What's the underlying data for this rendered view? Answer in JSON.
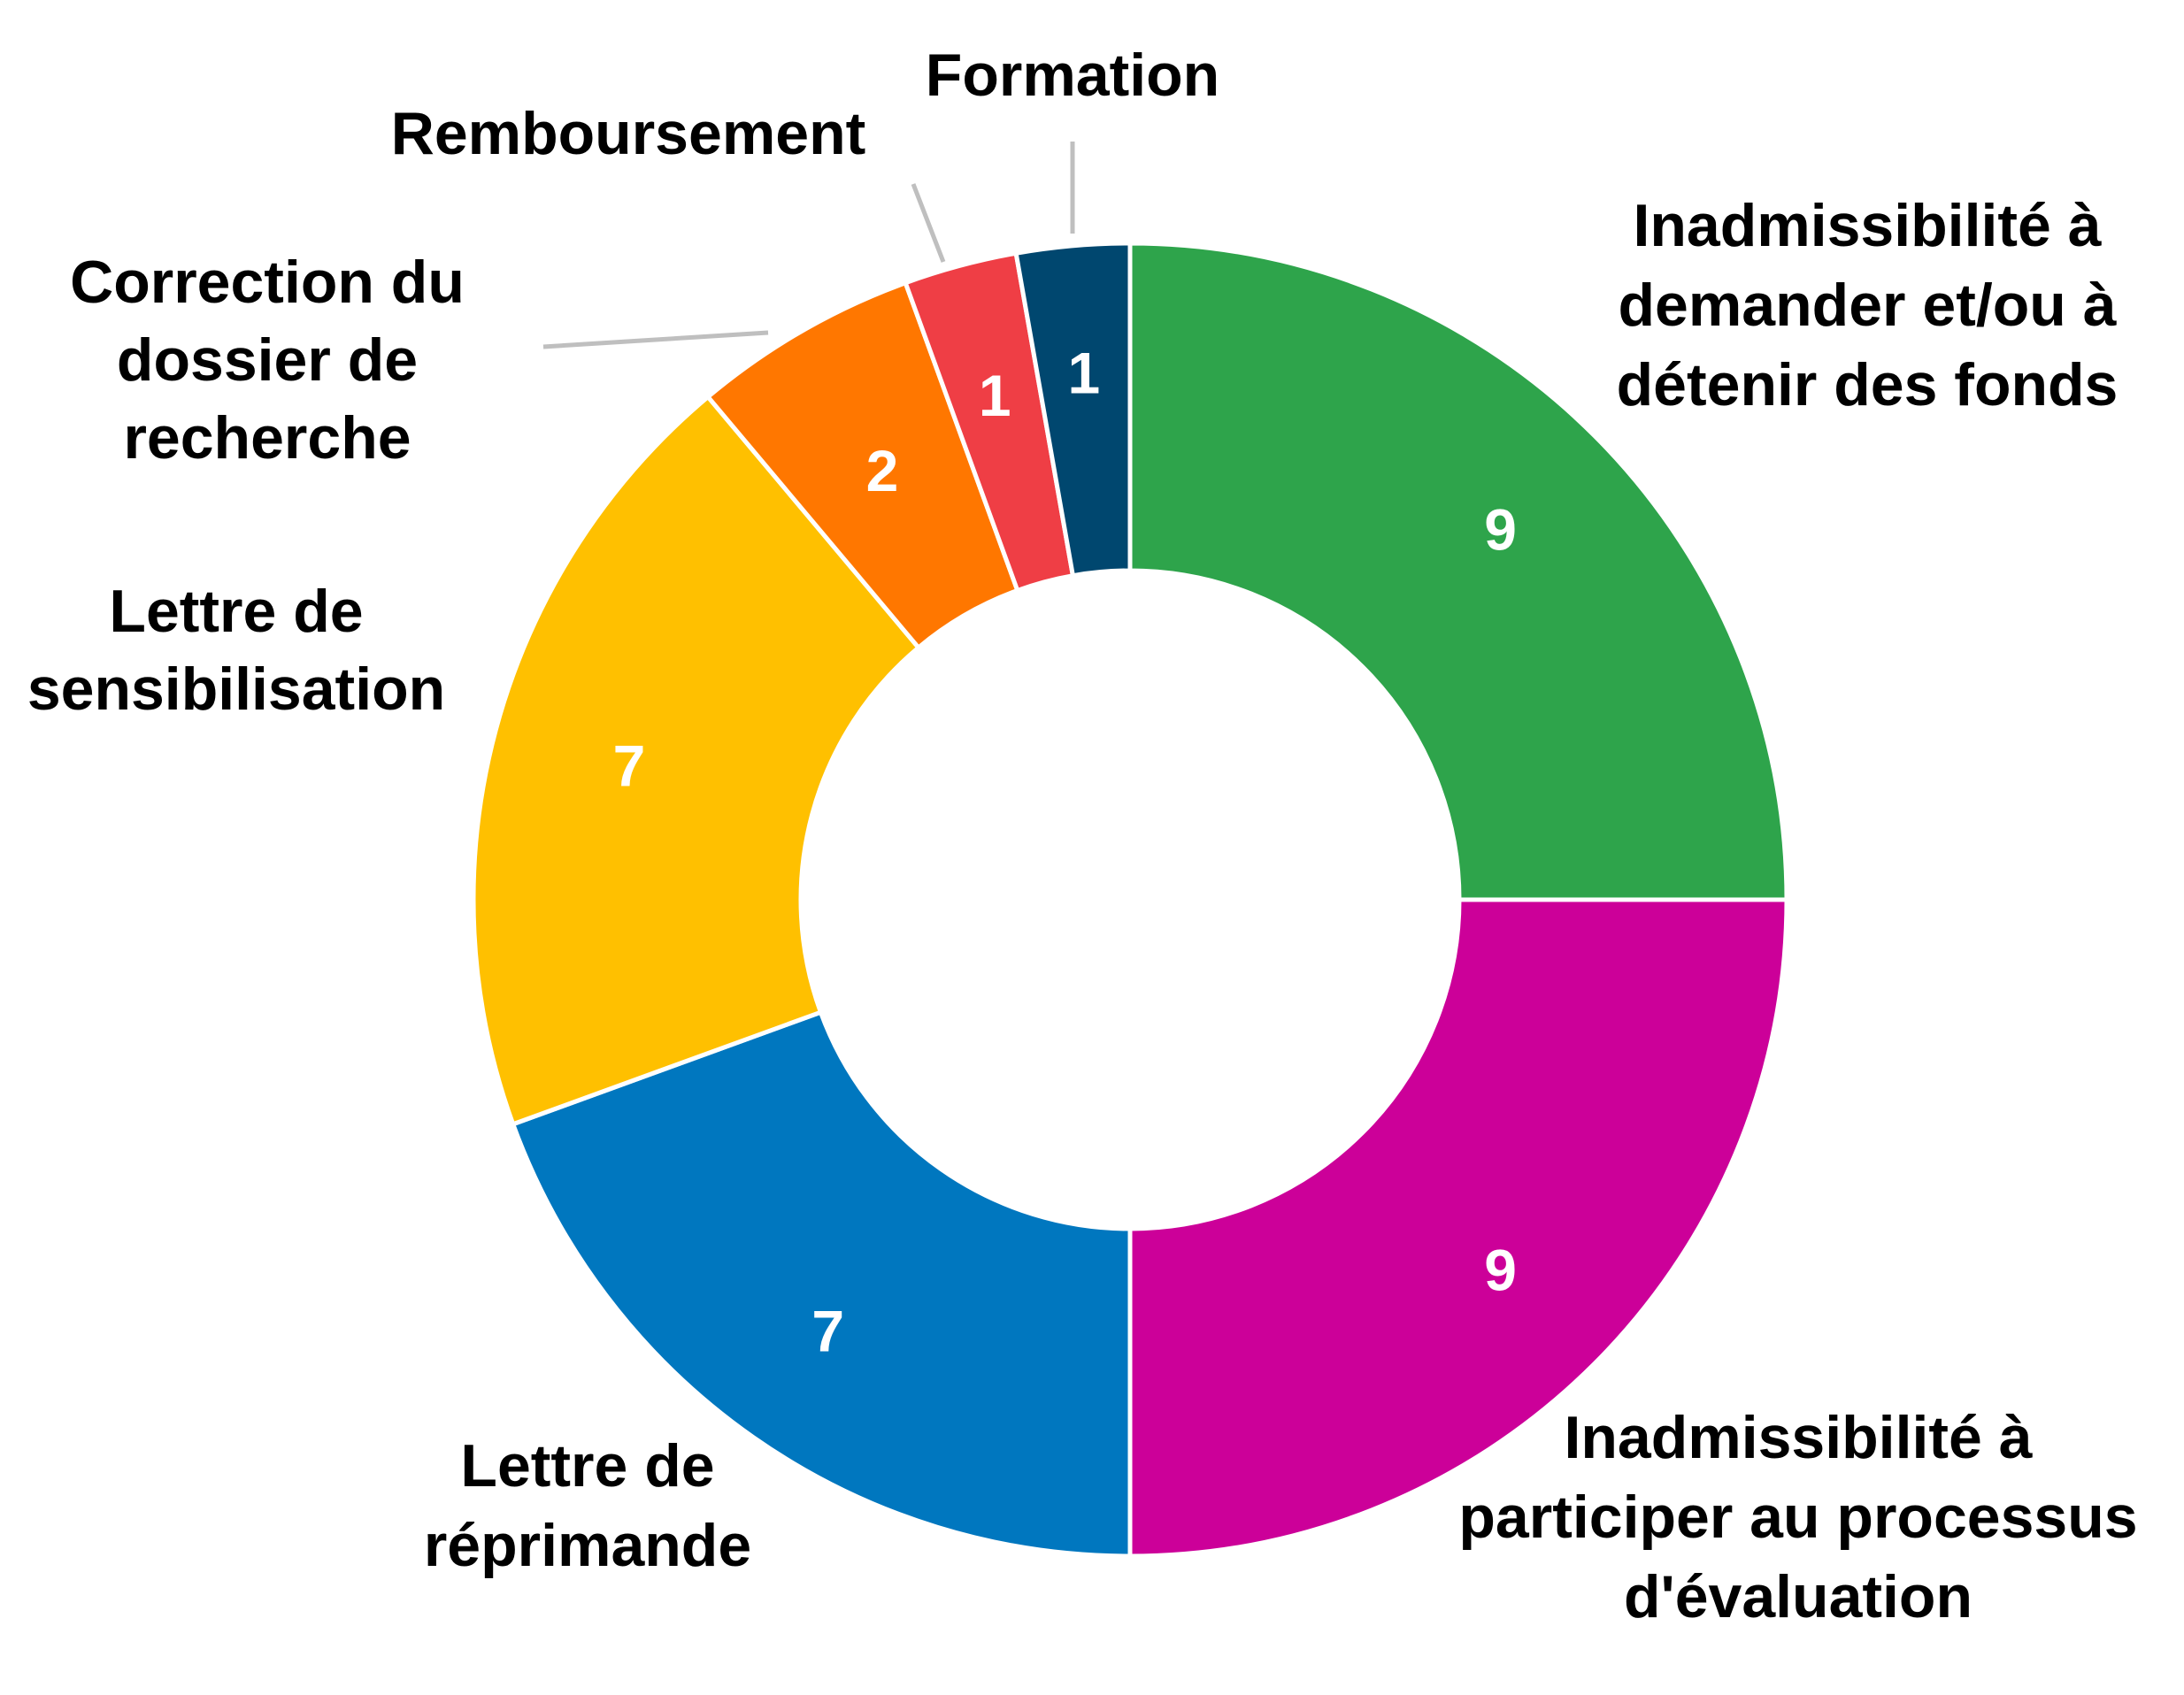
{
  "chart_data": {
    "type": "pie",
    "variant": "donut",
    "title": "",
    "start": "top, clockwise",
    "categories": [
      "Inadmissibilité à demander et/ou à détenir des fonds",
      "Inadmissibilité à participer au processus d'évaluation",
      "Lettre de réprimande",
      "Lettre de sensibilisation",
      "Correction du dossier de recherche",
      "Remboursement",
      "Formation"
    ],
    "values": [
      9,
      9,
      7,
      7,
      2,
      1,
      1
    ],
    "value_labels": [
      "9",
      "9",
      "7",
      "7",
      "2",
      "1",
      "1"
    ],
    "label_lines": [
      [
        "Inadmissibilité à",
        "demander et/ou à",
        "détenir des fonds"
      ],
      [
        "Inadmissibilité à",
        "participer au processus",
        "d'évaluation"
      ],
      [
        "Lettre de",
        "réprimande"
      ],
      [
        "Lettre de",
        "sensibilisation"
      ],
      [
        "Correction du",
        "dossier de",
        "recherche"
      ],
      [
        "Remboursement"
      ],
      [
        "Formation"
      ]
    ],
    "colors": [
      "#2ea44b",
      "#cc0099",
      "#0077bf",
      "#ffc000",
      "#ff7700",
      "#ef3e45",
      "#00476f"
    ],
    "legend": "none"
  }
}
